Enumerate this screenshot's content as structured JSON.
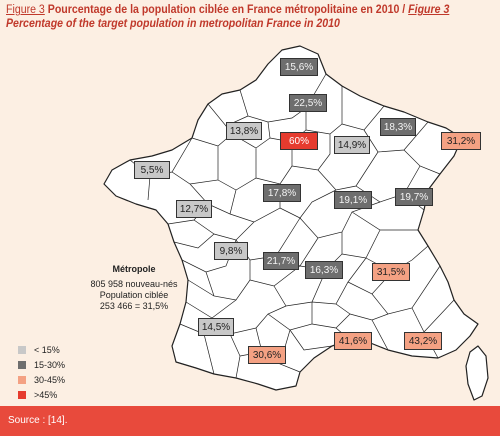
{
  "caption": {
    "figure_fr": "Figure 3",
    "title_fr": "Pourcentage de la population ciblée en France métropolitaine en 2010 / ",
    "figure_en": "Figure 3",
    "title_en": "Percentage of the target population in metropolitan France in 2010"
  },
  "regions": [
    {
      "label": "15,6%",
      "category": "15-30%"
    },
    {
      "label": "22,5%",
      "category": "15-30%"
    },
    {
      "label": "13,8%",
      "category": "< 15%"
    },
    {
      "label": "60%",
      "category": ">45%"
    },
    {
      "label": "14,9%",
      "category": "< 15%"
    },
    {
      "label": "18,3%",
      "category": "15-30%"
    },
    {
      "label": "31,2%",
      "category": "30-45%"
    },
    {
      "label": "5,5%",
      "category": "< 15%"
    },
    {
      "label": "17,8%",
      "category": "15-30%"
    },
    {
      "label": "19,1%",
      "category": "15-30%"
    },
    {
      "label": "19,7%",
      "category": "15-30%"
    },
    {
      "label": "12,7%",
      "category": "< 15%"
    },
    {
      "label": "9,8%",
      "category": "< 15%"
    },
    {
      "label": "21,7%",
      "category": "15-30%"
    },
    {
      "label": "16,3%",
      "category": "15-30%"
    },
    {
      "label": "31,5%",
      "category": "30-45%"
    },
    {
      "label": "14,5%",
      "category": "< 15%"
    },
    {
      "label": "30,6%",
      "category": "30-45%"
    },
    {
      "label": "41,6%",
      "category": "30-45%"
    },
    {
      "label": "43,2%",
      "category": "30-45%"
    }
  ],
  "summary": {
    "title": "Métropole",
    "line1": "805 958 nouveau-nés",
    "line2": "Population ciblée",
    "line3": "253 466 = 31,5%"
  },
  "legend": [
    {
      "label": "< 15%",
      "color": "#c8c8c8"
    },
    {
      "label": "15-30%",
      "color": "#6e6e6e"
    },
    {
      "label": "30-45%",
      "color": "#f4a183"
    },
    {
      "label": ">45%",
      "color": "#e63b2e"
    }
  ],
  "source": "Source : [14]."
}
